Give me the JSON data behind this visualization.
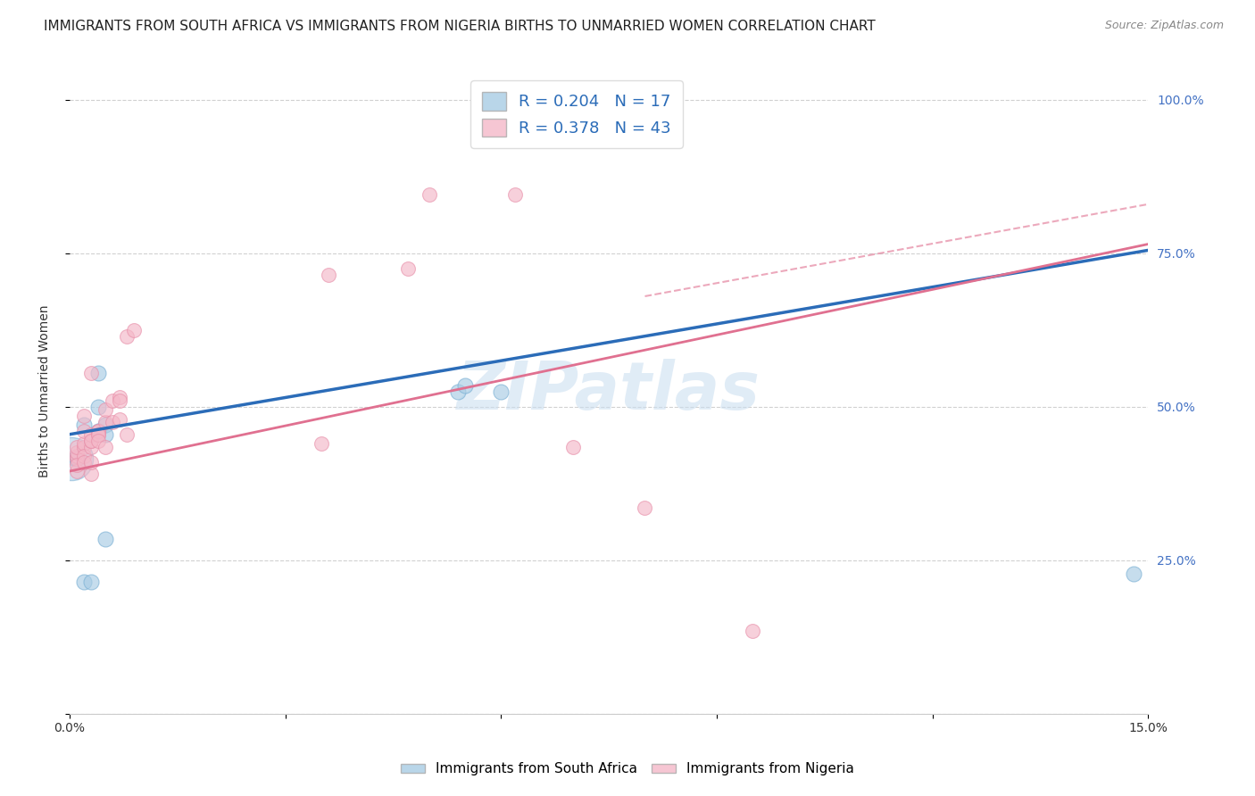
{
  "title": "IMMIGRANTS FROM SOUTH AFRICA VS IMMIGRANTS FROM NIGERIA BIRTHS TO UNMARRIED WOMEN CORRELATION CHART",
  "source": "Source: ZipAtlas.com",
  "ylabel": "Births to Unmarried Women",
  "x_min": 0.0,
  "x_max": 0.15,
  "y_min": 0.0,
  "y_max": 1.05,
  "blue_R": 0.204,
  "blue_N": 17,
  "pink_R": 0.378,
  "pink_N": 43,
  "blue_label": "Immigrants from South Africa",
  "pink_label": "Immigrants from Nigeria",
  "blue_color": "#a8cce4",
  "pink_color": "#f4b8c8",
  "blue_edge_color": "#7ab0d4",
  "pink_edge_color": "#e890aa",
  "blue_line_color": "#2b6cb8",
  "pink_line_color": "#e07090",
  "blue_scatter": [
    [
      0.0008,
      0.415
    ],
    [
      0.001,
      0.415
    ],
    [
      0.001,
      0.415
    ],
    [
      0.002,
      0.47
    ],
    [
      0.002,
      0.215
    ],
    [
      0.003,
      0.215
    ],
    [
      0.004,
      0.5
    ],
    [
      0.004,
      0.555
    ],
    [
      0.004,
      0.46
    ],
    [
      0.005,
      0.47
    ],
    [
      0.005,
      0.455
    ],
    [
      0.005,
      0.285
    ],
    [
      0.054,
      0.525
    ],
    [
      0.055,
      0.535
    ],
    [
      0.06,
      0.525
    ],
    [
      0.148,
      0.228
    ]
  ],
  "blue_big_circle": [
    0.0003,
    0.415
  ],
  "pink_scatter": [
    [
      0.001,
      0.415
    ],
    [
      0.001,
      0.42
    ],
    [
      0.001,
      0.425
    ],
    [
      0.001,
      0.435
    ],
    [
      0.001,
      0.395
    ],
    [
      0.001,
      0.405
    ],
    [
      0.002,
      0.435
    ],
    [
      0.002,
      0.44
    ],
    [
      0.002,
      0.42
    ],
    [
      0.002,
      0.41
    ],
    [
      0.002,
      0.485
    ],
    [
      0.002,
      0.46
    ],
    [
      0.003,
      0.435
    ],
    [
      0.003,
      0.445
    ],
    [
      0.003,
      0.455
    ],
    [
      0.003,
      0.555
    ],
    [
      0.003,
      0.445
    ],
    [
      0.003,
      0.39
    ],
    [
      0.003,
      0.41
    ],
    [
      0.004,
      0.46
    ],
    [
      0.004,
      0.455
    ],
    [
      0.004,
      0.46
    ],
    [
      0.004,
      0.455
    ],
    [
      0.004,
      0.445
    ],
    [
      0.005,
      0.435
    ],
    [
      0.005,
      0.475
    ],
    [
      0.005,
      0.495
    ],
    [
      0.006,
      0.475
    ],
    [
      0.006,
      0.51
    ],
    [
      0.007,
      0.515
    ],
    [
      0.007,
      0.51
    ],
    [
      0.007,
      0.48
    ],
    [
      0.008,
      0.455
    ],
    [
      0.008,
      0.615
    ],
    [
      0.009,
      0.625
    ],
    [
      0.035,
      0.44
    ],
    [
      0.036,
      0.715
    ],
    [
      0.047,
      0.725
    ],
    [
      0.05,
      0.845
    ],
    [
      0.062,
      0.845
    ],
    [
      0.07,
      0.435
    ],
    [
      0.08,
      0.335
    ],
    [
      0.095,
      0.135
    ]
  ],
  "blue_line_x": [
    0.0,
    0.15
  ],
  "blue_line_y": [
    0.455,
    0.755
  ],
  "pink_line_x": [
    0.0,
    0.15
  ],
  "pink_line_y": [
    0.395,
    0.765
  ],
  "pink_dashed_line_x": [
    0.08,
    0.15
  ],
  "pink_dashed_line_y": [
    0.68,
    0.83
  ],
  "watermark": "ZIPatlas",
  "background_color": "#ffffff",
  "grid_color": "#cccccc",
  "title_fontsize": 11,
  "axis_label_fontsize": 10,
  "tick_fontsize": 10,
  "legend_fontsize": 13,
  "right_tick_color": "#4472c4"
}
